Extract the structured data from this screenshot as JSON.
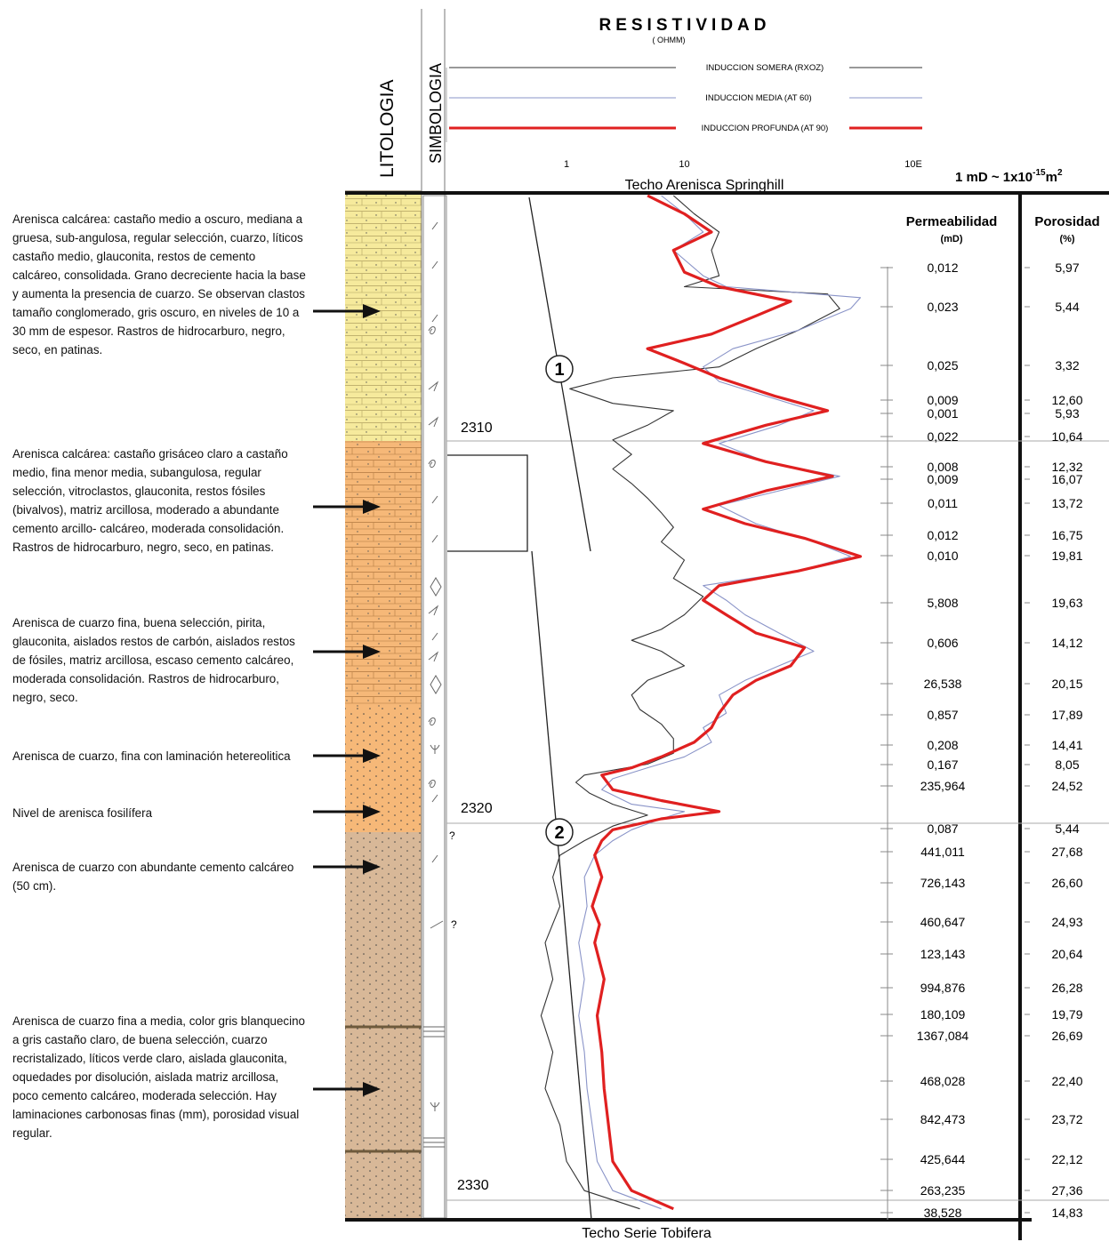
{
  "chart_data": {
    "type": "line",
    "headers": {
      "lithology": "LITOLOGIA",
      "symbology": "SIMBOLOGIA",
      "resistivity_title": "RESISTIVIDAD",
      "resistivity_unit": "( OHMM)",
      "conversion": "1 mD ~ 1x10",
      "conversion_exp": "-15",
      "conversion_unit": "m",
      "conversion_unit_exp": "2"
    },
    "legend": [
      {
        "name": "INDUCCION SOMERA (RXOZ)",
        "color": "#333333",
        "width": 1
      },
      {
        "name": "INDUCCION MEDIA  (AT 60)",
        "color": "#8a94c8",
        "width": 1
      },
      {
        "name": "INDUCCION PROFUNDA  (AT 90)",
        "color": "#e02020",
        "width": 3
      }
    ],
    "x_axis": {
      "scale": "log",
      "range": [
        1,
        100
      ],
      "ticks": [
        "1",
        "10",
        "100"
      ],
      "tick_labels": [
        "1",
        "10",
        "10E"
      ]
    },
    "top_label": "Techo Arenisca Springhill",
    "bottom_label": "Techo Serie Tobifera",
    "depth_axis": {
      "range": [
        2303.5,
        2331.6
      ],
      "labels": [
        "2310",
        "2320",
        "2330"
      ]
    },
    "zones": [
      "1",
      "2"
    ],
    "unknown_marks": [
      "?",
      "?"
    ],
    "permeability": {
      "title": "Permeabilidad",
      "unit": "(mD)",
      "values": [
        "0,012",
        "0,023",
        "0,025",
        "0,009",
        "0,001",
        "0,022",
        "0,008",
        "0,009",
        "0,011",
        "0,012",
        "0,010",
        "5,808",
        "0,606",
        "26,538",
        "0,857",
        "0,208",
        "0,167",
        "235,964",
        "0,087",
        "441,011",
        "726,143",
        "460,647",
        "123,143",
        "994,876",
        "180,109",
        "1367,084",
        "468,028",
        "842,473",
        "425,644",
        "263,235",
        "38,528"
      ]
    },
    "porosity": {
      "title": "Porosidad",
      "unit": "(%)",
      "values": [
        "5,97",
        "5,44",
        "3,32",
        "12,60",
        "5,93",
        "10,64",
        "12,32",
        "16,07",
        "13,72",
        "16,75",
        "19,81",
        "19,63",
        "14,12",
        "20,15",
        "17,89",
        "14,41",
        "8,05",
        "24,52",
        "5,44",
        "27,68",
        "26,60",
        "24,93",
        "20,64",
        "26,28",
        "19,79",
        "26,69",
        "22,40",
        "23,72",
        "22,12",
        "27,36",
        "14,83"
      ]
    },
    "series": [
      {
        "name": "INDUCCION SOMERA (RXOZ)",
        "color": "#333333",
        "points": [
          [
            9,
            2303.5
          ],
          [
            11,
            2304.0
          ],
          [
            14,
            2304.5
          ],
          [
            13,
            2305.0
          ],
          [
            14,
            2305.7
          ],
          [
            10,
            2306.0
          ],
          [
            40,
            2306.2
          ],
          [
            45,
            2306.6
          ],
          [
            30,
            2307.2
          ],
          [
            20,
            2307.7
          ],
          [
            14,
            2308.2
          ],
          [
            5,
            2308.5
          ],
          [
            3.3,
            2308.8
          ],
          [
            5,
            2309.2
          ],
          [
            9,
            2309.4
          ],
          [
            7,
            2309.8
          ],
          [
            5,
            2310.2
          ],
          [
            6,
            2310.6
          ],
          [
            5,
            2311.0
          ],
          [
            6,
            2311.4
          ],
          [
            7,
            2311.8
          ],
          [
            8,
            2312.2
          ],
          [
            9,
            2312.6
          ],
          [
            8,
            2313.0
          ],
          [
            10,
            2313.5
          ],
          [
            9,
            2314.0
          ],
          [
            12,
            2314.5
          ],
          [
            10,
            2315.0
          ],
          [
            8,
            2315.4
          ],
          [
            6,
            2315.7
          ],
          [
            8,
            2316.0
          ],
          [
            10,
            2316.4
          ],
          [
            7,
            2316.8
          ],
          [
            6,
            2317.2
          ],
          [
            6.5,
            2317.6
          ],
          [
            8,
            2318.0
          ],
          [
            9,
            2318.4
          ],
          [
            9,
            2318.8
          ],
          [
            7,
            2319.1
          ],
          [
            3.8,
            2319.4
          ],
          [
            3.5,
            2319.6
          ],
          [
            4,
            2319.9
          ],
          [
            5,
            2320.2
          ],
          [
            7,
            2320.5
          ],
          [
            5,
            2320.8
          ],
          [
            3.8,
            2321.2
          ],
          [
            3,
            2321.6
          ],
          [
            2.8,
            2322.2
          ],
          [
            3,
            2323.0
          ],
          [
            2.6,
            2324.0
          ],
          [
            2.8,
            2325.0
          ],
          [
            2.5,
            2326.0
          ],
          [
            2.8,
            2327.0
          ],
          [
            2.6,
            2328.0
          ],
          [
            3,
            2329.0
          ],
          [
            3.2,
            2330.0
          ],
          [
            3.8,
            2330.8
          ],
          [
            6.5,
            2331.3
          ]
        ]
      },
      {
        "name": "INDUCCION MEDIA  (AT 60)",
        "color": "#8a94c8",
        "points": [
          [
            8,
            2303.5
          ],
          [
            10,
            2304.0
          ],
          [
            12,
            2304.5
          ],
          [
            9,
            2305.0
          ],
          [
            12,
            2305.7
          ],
          [
            15,
            2306.0
          ],
          [
            55,
            2306.3
          ],
          [
            50,
            2306.6
          ],
          [
            30,
            2307.2
          ],
          [
            16,
            2307.7
          ],
          [
            12,
            2308.2
          ],
          [
            14,
            2308.6
          ],
          [
            22,
            2309.0
          ],
          [
            35,
            2309.4
          ],
          [
            25,
            2309.8
          ],
          [
            14,
            2310.3
          ],
          [
            22,
            2310.8
          ],
          [
            45,
            2311.2
          ],
          [
            25,
            2311.6
          ],
          [
            14,
            2312.0
          ],
          [
            20,
            2312.5
          ],
          [
            35,
            2313.0
          ],
          [
            50,
            2313.4
          ],
          [
            30,
            2313.8
          ],
          [
            12,
            2314.2
          ],
          [
            15,
            2314.6
          ],
          [
            18,
            2315.0
          ],
          [
            25,
            2315.5
          ],
          [
            35,
            2316.0
          ],
          [
            25,
            2316.4
          ],
          [
            18,
            2316.8
          ],
          [
            14,
            2317.2
          ],
          [
            15,
            2317.7
          ],
          [
            12,
            2318.1
          ],
          [
            13,
            2318.5
          ],
          [
            10,
            2318.9
          ],
          [
            7,
            2319.2
          ],
          [
            5,
            2319.5
          ],
          [
            4.5,
            2319.8
          ],
          [
            6,
            2320.2
          ],
          [
            10,
            2320.4
          ],
          [
            8,
            2320.6
          ],
          [
            6,
            2320.9
          ],
          [
            5,
            2321.2
          ],
          [
            4.2,
            2321.6
          ],
          [
            3.8,
            2322.2
          ],
          [
            3.9,
            2323.0
          ],
          [
            3.6,
            2324.0
          ],
          [
            3.8,
            2325.0
          ],
          [
            3.6,
            2326.0
          ],
          [
            3.8,
            2327.0
          ],
          [
            3.9,
            2328.0
          ],
          [
            4.1,
            2329.0
          ],
          [
            4.3,
            2330.0
          ],
          [
            5,
            2330.8
          ],
          [
            8,
            2331.3
          ]
        ]
      },
      {
        "name": "INDUCCION PROFUNDA  (AT 90)",
        "color": "#e02020",
        "points": [
          [
            7,
            2303.5
          ],
          [
            10,
            2304.0
          ],
          [
            13,
            2304.5
          ],
          [
            9,
            2305.0
          ],
          [
            10,
            2305.6
          ],
          [
            14,
            2306.0
          ],
          [
            28,
            2306.4
          ],
          [
            20,
            2306.8
          ],
          [
            13,
            2307.3
          ],
          [
            7,
            2307.7
          ],
          [
            10,
            2308.1
          ],
          [
            14,
            2308.5
          ],
          [
            24,
            2309.0
          ],
          [
            40,
            2309.4
          ],
          [
            22,
            2309.8
          ],
          [
            12,
            2310.3
          ],
          [
            22,
            2310.8
          ],
          [
            42,
            2311.2
          ],
          [
            22,
            2311.6
          ],
          [
            12,
            2312.1
          ],
          [
            18,
            2312.5
          ],
          [
            32,
            2312.9
          ],
          [
            55,
            2313.4
          ],
          [
            30,
            2313.8
          ],
          [
            14,
            2314.2
          ],
          [
            12,
            2314.6
          ],
          [
            15,
            2315.0
          ],
          [
            20,
            2315.5
          ],
          [
            32,
            2315.9
          ],
          [
            28,
            2316.4
          ],
          [
            20,
            2316.8
          ],
          [
            16,
            2317.2
          ],
          [
            14,
            2317.7
          ],
          [
            13,
            2318.1
          ],
          [
            11,
            2318.5
          ],
          [
            8,
            2318.9
          ],
          [
            6,
            2319.2
          ],
          [
            4.5,
            2319.4
          ],
          [
            5,
            2319.8
          ],
          [
            8,
            2320.1
          ],
          [
            14,
            2320.4
          ],
          [
            8,
            2320.6
          ],
          [
            5,
            2320.9
          ],
          [
            4.5,
            2321.2
          ],
          [
            4.2,
            2321.6
          ],
          [
            4.5,
            2322.2
          ],
          [
            4.1,
            2323.0
          ],
          [
            4.4,
            2323.5
          ],
          [
            4.2,
            2324.0
          ],
          [
            4.6,
            2325.0
          ],
          [
            4.3,
            2326.0
          ],
          [
            4.5,
            2327.0
          ],
          [
            4.6,
            2328.0
          ],
          [
            4.8,
            2329.0
          ],
          [
            5,
            2330.0
          ],
          [
            6,
            2330.8
          ],
          [
            9,
            2331.3
          ]
        ]
      }
    ]
  },
  "descriptions": [
    "Arenisca calcárea: castaño medio a oscuro, mediana a gruesa, sub-angulosa, regular selección, cuarzo, líticos castaño medio, glauconita, restos de cemento calcáreo, consolidada. Grano decreciente hacia la base y aumenta la presencia de cuarzo. Se observan clastos tamaño conglomerado, gris oscuro, en niveles de 10 a 30 mm de espesor. Rastros de hidrocarburo, negro, seco, en patinas.",
    "Arenisca calcárea: castaño grisáceo claro a castaño medio, fina menor media, subangulosa, regular selección, vitroclastos, glauconita, restos fósiles (bivalvos), matriz arcillosa, moderado a abundante cemento arcillo- calcáreo, moderada consolidación. Rastros de hidrocarburo, negro, seco, en patinas.",
    "Arenisca de cuarzo fina, buena selección, pirita, glauconita, aislados restos de carbón, aislados restos de fósiles, matriz arcillosa, escaso cemento calcáreo, moderada consolidación. Rastros de hidrocarburo, negro, seco.",
    "Arenisca de cuarzo, fina con laminación hetereolitica",
    "Nivel de arenisca fosilífera",
    "Arenisca de cuarzo con abundante cemento calcáreo (50 cm).",
    "Arenisca de cuarzo fina a media, color gris blanquecino a gris castaño claro, de buena selección, cuarzo recristalizado, líticos verde claro, aislada glauconita, oquedades por disolución, aislada matriz arcillosa, poco cemento calcáreo, moderada selección. Hay laminaciones carbonosas finas (mm), porosidad visual regular."
  ],
  "colors": {
    "yellow": "#f6ea9c",
    "orange": "#f6b878",
    "tan": "#d8b898",
    "deep": "#e02020",
    "medium": "#8a94c8",
    "shallow": "#333333"
  }
}
